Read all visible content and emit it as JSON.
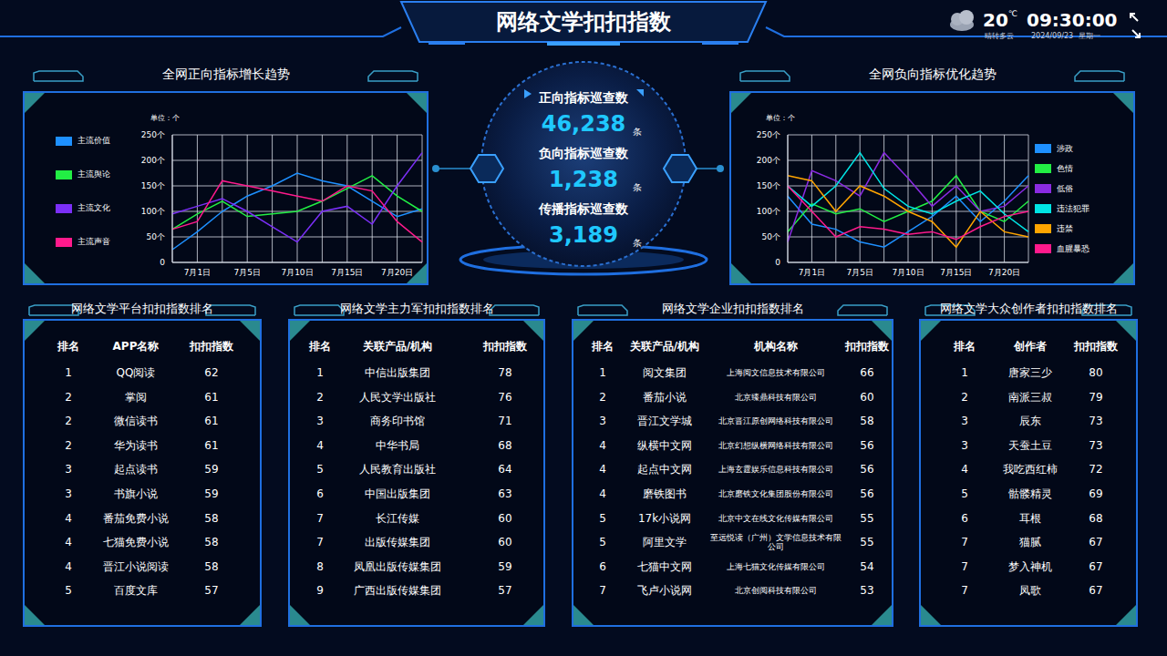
{
  "header": {
    "title": "网络文学扣扣指数",
    "weather": {
      "temperature": 20,
      "unit": "℃",
      "condition": "晴转多云"
    },
    "time": "09:30:00",
    "date": "2024/09/23",
    "weekday": "星期一"
  },
  "center": {
    "items": [
      {
        "label": "正向指标巡查数",
        "value": "46,238",
        "unit": "条"
      },
      {
        "label": "负向指标巡查数",
        "value": "1,238",
        "unit": "条"
      },
      {
        "label": "传播指标巡查数",
        "value": "3,189",
        "unit": "条"
      }
    ]
  },
  "chart_data": [
    {
      "type": "line",
      "title": "全网正向指标增长趋势",
      "unit_label": "单位：个",
      "categories": [
        null,
        "7月1日",
        null,
        "7月5日",
        null,
        "7月10日",
        null,
        "7月15日",
        null,
        "7月20日",
        null
      ],
      "ylim": [
        0,
        250
      ],
      "yticks": [
        0,
        {
          "value": 50,
          "label": "50个"
        },
        {
          "value": 100,
          "label": "100个"
        },
        {
          "value": 150,
          "label": "150个"
        },
        {
          "value": 200,
          "label": "200个"
        },
        {
          "value": 250,
          "label": "250个"
        }
      ],
      "grid": true,
      "legend": "left",
      "series": [
        {
          "name": "主流价值",
          "color": "#1e90ff",
          "values": [
            25,
            60,
            100,
            130,
            150,
            175,
            160,
            150,
            120,
            90,
            105
          ]
        },
        {
          "name": "主流舆论",
          "color": "#22ee44",
          "values": [
            65,
            95,
            120,
            90,
            95,
            100,
            120,
            145,
            170,
            130,
            100
          ]
        },
        {
          "name": "主流文化",
          "color": "#7b2ff7",
          "values": [
            95,
            110,
            125,
            100,
            70,
            40,
            100,
            110,
            75,
            150,
            215
          ]
        },
        {
          "name": "主流声音",
          "color": "#ff1a8c",
          "values": [
            65,
            80,
            160,
            150,
            140,
            130,
            120,
            150,
            140,
            80,
            40
          ]
        }
      ]
    },
    {
      "type": "line",
      "title": "全网负向指标优化趋势",
      "unit_label": "单位：个",
      "categories": [
        null,
        "7月1日",
        null,
        "7月5日",
        null,
        "7月10日",
        null,
        "7月15日",
        null,
        "7月20日",
        null
      ],
      "ylim": [
        0,
        250
      ],
      "yticks": [
        0,
        {
          "value": 50,
          "label": "50个"
        },
        {
          "value": 100,
          "label": "100个"
        },
        {
          "value": 150,
          "label": "150个"
        },
        {
          "value": 200,
          "label": "200个"
        },
        {
          "value": 250,
          "label": "250个"
        }
      ],
      "grid": true,
      "legend": "right",
      "series": [
        {
          "name": "涉政",
          "color": "#1e90ff",
          "values": [
            130,
            75,
            65,
            40,
            30,
            60,
            90,
            130,
            80,
            120,
            170
          ]
        },
        {
          "name": "色情",
          "color": "#22ee44",
          "values": [
            60,
            115,
            95,
            105,
            80,
            100,
            120,
            170,
            100,
            80,
            120
          ]
        },
        {
          "name": "低俗",
          "color": "#8a2be2",
          "values": [
            40,
            180,
            160,
            130,
            215,
            165,
            110,
            150,
            100,
            110,
            150
          ]
        },
        {
          "name": "违法犯罪",
          "color": "#00e5e5",
          "values": [
            150,
            110,
            150,
            215,
            145,
            110,
            95,
            120,
            140,
            95,
            60
          ]
        },
        {
          "name": "违禁",
          "color": "#ffa500",
          "values": [
            170,
            160,
            100,
            150,
            130,
            100,
            80,
            30,
            100,
            60,
            50
          ]
        },
        {
          "name": "血腥暴恐",
          "color": "#ff1a8c",
          "values": [
            150,
            100,
            50,
            70,
            65,
            55,
            60,
            45,
            70,
            90,
            100
          ]
        }
      ]
    }
  ],
  "tables": [
    {
      "title": "网络文学平台扣扣指数排名",
      "headers": [
        "排名",
        "APP名称",
        "扣扣指数"
      ],
      "rows": [
        [
          1,
          "QQ阅读",
          62
        ],
        [
          2,
          "掌阅",
          61
        ],
        [
          2,
          "微信读书",
          61
        ],
        [
          2,
          "华为读书",
          61
        ],
        [
          3,
          "起点读书",
          59
        ],
        [
          3,
          "书旗小说",
          59
        ],
        [
          4,
          "番茄免费小说",
          58
        ],
        [
          4,
          "七猫免费小说",
          58
        ],
        [
          4,
          "晋江小说阅读",
          58
        ],
        [
          5,
          "百度文库",
          57
        ]
      ]
    },
    {
      "title": "网络文学主力军扣扣指数排名",
      "headers": [
        "排名",
        "关联产品/机构",
        "扣扣指数"
      ],
      "rows": [
        [
          1,
          "中信出版集团",
          78
        ],
        [
          2,
          "人民文学出版社",
          76
        ],
        [
          3,
          "商务印书馆",
          71
        ],
        [
          4,
          "中华书局",
          68
        ],
        [
          5,
          "人民教育出版社",
          64
        ],
        [
          6,
          "中国出版集团",
          63
        ],
        [
          7,
          "长江传媒",
          60
        ],
        [
          7,
          "出版传媒集团",
          60
        ],
        [
          8,
          "凤凰出版传媒集团",
          59
        ],
        [
          9,
          "广西出版传媒集团",
          57
        ]
      ]
    },
    {
      "title": "网络文学企业扣扣指数排名",
      "headers": [
        "排名",
        "关联产品/机构",
        "机构名称",
        "扣扣指数"
      ],
      "rows": [
        [
          1,
          "阅文集团",
          "上海阅文信息技术有限公司",
          66
        ],
        [
          2,
          "番茄小说",
          "北京臻鼎科技有限公司",
          60
        ],
        [
          3,
          "晋江文学城",
          "北京晋江原创网络科技有限公司",
          58
        ],
        [
          4,
          "纵横中文网",
          "北京幻想纵横网络科技有限公司",
          56
        ],
        [
          4,
          "起点中文网",
          "上海玄霆娱乐信息科技有限公司",
          56
        ],
        [
          4,
          "磨铁图书",
          "北京磨铁文化集团股份有限公司",
          56
        ],
        [
          5,
          "17k小说网",
          "北京中文在线文化传媒有限公司",
          55
        ],
        [
          5,
          "阿里文学",
          "至远悦读（广州）文学信息技术有限公司",
          55
        ],
        [
          6,
          "七猫中文网",
          "上海七猫文化传媒有限公司",
          54
        ],
        [
          7,
          "飞卢小说网",
          "北京创阅科技有限公司",
          53
        ]
      ]
    },
    {
      "title": "网络文学大众创作者扣扣指数排名",
      "headers": [
        "排名",
        "创作者",
        "扣扣指数"
      ],
      "rows": [
        [
          1,
          "唐家三少",
          80
        ],
        [
          2,
          "南派三叔",
          79
        ],
        [
          3,
          "辰东",
          73
        ],
        [
          3,
          "天蚕土豆",
          73
        ],
        [
          4,
          "我吃西红柿",
          72
        ],
        [
          5,
          "骷髅精灵",
          69
        ],
        [
          6,
          "耳根",
          68
        ],
        [
          7,
          "猫腻",
          67
        ],
        [
          7,
          "梦入神机",
          67
        ],
        [
          7,
          "凤歌",
          67
        ]
      ]
    }
  ]
}
